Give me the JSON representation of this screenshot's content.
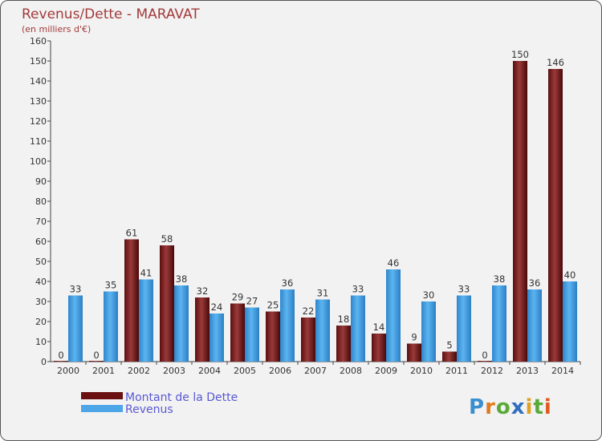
{
  "chart_data": {
    "type": "bar",
    "title": "Revenus/Dette - MARAVAT",
    "subtitle": "(en milliers d'€)",
    "categories": [
      "2000",
      "2001",
      "2002",
      "2003",
      "2004",
      "2005",
      "2006",
      "2007",
      "2008",
      "2009",
      "2010",
      "2011",
      "2012",
      "2013",
      "2014"
    ],
    "series": [
      {
        "name": "Montant de la Dette",
        "color": "#7a1f1f",
        "values": [
          0,
          0,
          61,
          58,
          32,
          29,
          25,
          22,
          18,
          14,
          9,
          5,
          0,
          150,
          146
        ]
      },
      {
        "name": "Revenus",
        "color": "#4da6e8",
        "values": [
          33,
          35,
          41,
          38,
          24,
          27,
          36,
          31,
          33,
          46,
          30,
          33,
          38,
          36,
          40
        ]
      }
    ],
    "ylim": [
      0,
      160
    ],
    "ytick_step": 10,
    "xlabel": "",
    "ylabel": "",
    "grid": false,
    "legend": "bottom-left"
  },
  "logo": {
    "text": "Proxiti"
  }
}
